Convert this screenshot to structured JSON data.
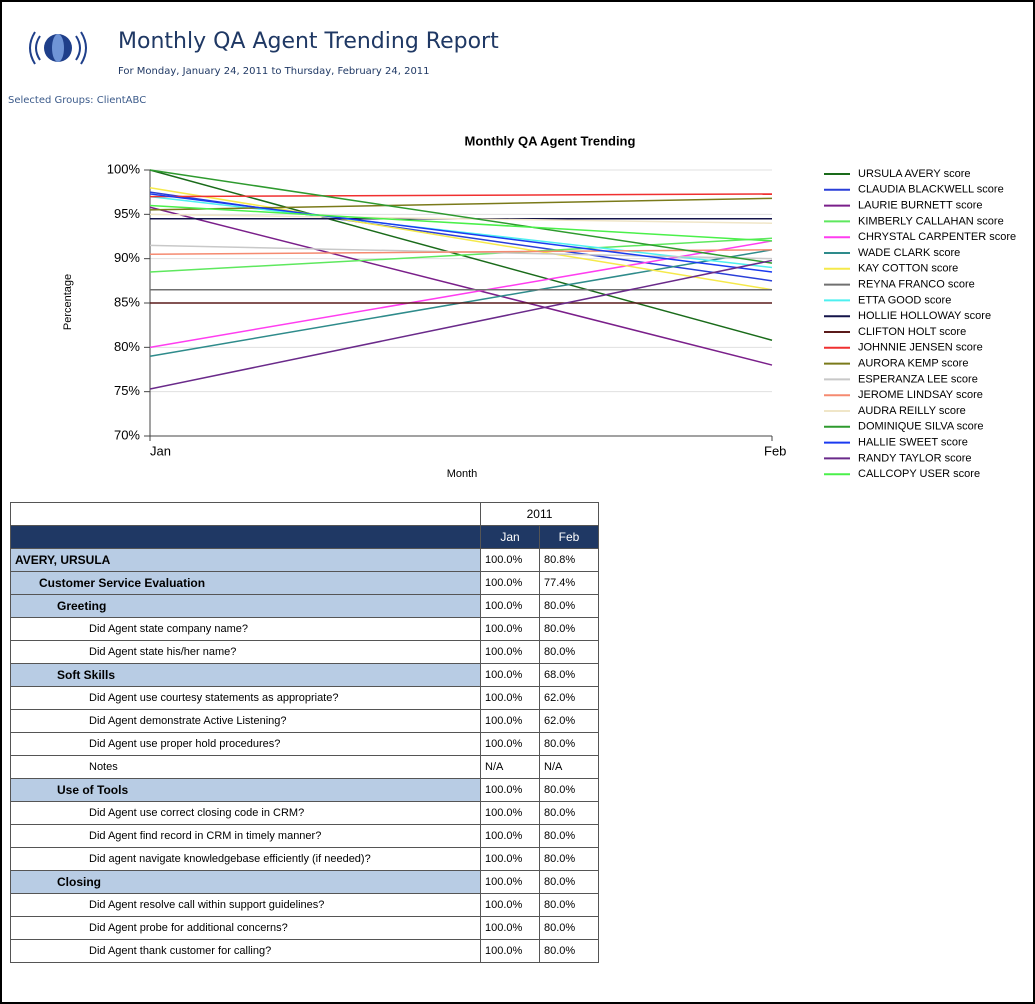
{
  "header": {
    "title": "Monthly QA Agent Trending Report",
    "subtitle": "For Monday, January 24, 2011 to Thursday, February 24, 2011",
    "groups": "Selected Groups: ClientABC"
  },
  "chart_data": {
    "type": "line",
    "title": "Monthly QA Agent Trending",
    "x_label": "Month",
    "y_label": "Percentage",
    "categories": [
      "Jan",
      "Feb"
    ],
    "ylim": [
      70,
      100
    ],
    "yticks": [
      {
        "value": 70,
        "label": "70%"
      },
      {
        "value": 75,
        "label": "75%"
      },
      {
        "value": 80,
        "label": "80%"
      },
      {
        "value": 85,
        "label": "85%"
      },
      {
        "value": 90,
        "label": "90%"
      },
      {
        "value": 95,
        "label": "95%"
      },
      {
        "value": 100,
        "label": "100%"
      }
    ],
    "grid": true,
    "legend": "right",
    "series": [
      {
        "name": "URSULA AVERY score",
        "color": "#1a6b1a",
        "values": [
          100,
          80.8
        ]
      },
      {
        "name": "CLAUDIA BLACKWELL score",
        "color": "#2a3fd8",
        "values": [
          97.5,
          87.5
        ]
      },
      {
        "name": "LAURIE BURNETT score",
        "color": "#7a1f8a",
        "values": [
          95.8,
          78
        ]
      },
      {
        "name": "KIMBERLY CALLAHAN score",
        "color": "#5ee85e",
        "values": [
          88.5,
          92.3
        ]
      },
      {
        "name": "CHRYSTAL CARPENTER score",
        "color": "#ff3df0",
        "values": [
          80,
          92
        ]
      },
      {
        "name": "WADE CLARK score",
        "color": "#2e8b8b",
        "values": [
          79,
          91
        ]
      },
      {
        "name": "KAY COTTON score",
        "color": "#f5e94a",
        "values": [
          98,
          86.5
        ]
      },
      {
        "name": "REYNA FRANCO score",
        "color": "#707070",
        "values": [
          86.5,
          86.5
        ]
      },
      {
        "name": "ETTA GOOD score",
        "color": "#4ef0f0",
        "values": [
          97,
          89
        ]
      },
      {
        "name": "HOLLIE HOLLOWAY score",
        "color": "#14144a",
        "values": [
          94.5,
          94.5
        ]
      },
      {
        "name": "CLIFTON HOLT score",
        "color": "#5a1a1a",
        "values": [
          85,
          85
        ]
      },
      {
        "name": "JOHNNIE JENSEN score",
        "color": "#f03030",
        "values": [
          97,
          97.3
        ]
      },
      {
        "name": "AURORA KEMP score",
        "color": "#7a7a1a",
        "values": [
          95.5,
          96.8
        ]
      },
      {
        "name": "ESPERANZA LEE score",
        "color": "#c8c8c8",
        "values": [
          91.5,
          90
        ]
      },
      {
        "name": "JEROME LINDSAY score",
        "color": "#f58a70",
        "values": [
          90.5,
          91
        ]
      },
      {
        "name": "AUDRA REILLY score",
        "color": "#f0e6c8",
        "values": [
          95,
          94
        ]
      },
      {
        "name": "DOMINIQUE SILVA score",
        "color": "#2e9a2e",
        "values": [
          100,
          89.5
        ]
      },
      {
        "name": "HALLIE SWEET score",
        "color": "#1a3af0",
        "values": [
          97.3,
          88.5
        ]
      },
      {
        "name": "RANDY TAYLOR score",
        "color": "#6a2a8a",
        "values": [
          75.3,
          89.8
        ]
      },
      {
        "name": "CALLCOPY USER score",
        "color": "#4af04a",
        "values": [
          96,
          92
        ]
      }
    ]
  },
  "table": {
    "year": "2011",
    "months": [
      "Jan",
      "Feb"
    ],
    "agent": {
      "name": "AVERY, URSULA",
      "values": [
        "100.0%",
        "80.8%"
      ],
      "sections": [
        {
          "name": "Customer Service Evaluation",
          "values": [
            "100.0%",
            "77.4%"
          ],
          "groups": [
            {
              "name": "Greeting",
              "values": [
                "100.0%",
                "80.0%"
              ],
              "items": [
                {
                  "label": "Did Agent state company name?",
                  "values": [
                    "100.0%",
                    "80.0%"
                  ]
                },
                {
                  "label": "Did Agent state his/her name?",
                  "values": [
                    "100.0%",
                    "80.0%"
                  ]
                }
              ]
            },
            {
              "name": "Soft Skills",
              "values": [
                "100.0%",
                "68.0%"
              ],
              "items": [
                {
                  "label": "Did Agent use courtesy statements as appropriate?",
                  "values": [
                    "100.0%",
                    "62.0%"
                  ]
                },
                {
                  "label": "Did Agent demonstrate Active Listening?",
                  "values": [
                    "100.0%",
                    "62.0%"
                  ]
                },
                {
                  "label": "Did Agent use proper hold procedures?",
                  "values": [
                    "100.0%",
                    "80.0%"
                  ]
                },
                {
                  "label": "Notes",
                  "values": [
                    "N/A",
                    "N/A"
                  ]
                }
              ]
            },
            {
              "name": "Use of Tools",
              "values": [
                "100.0%",
                "80.0%"
              ],
              "items": [
                {
                  "label": "Did Agent use correct closing code in CRM?",
                  "values": [
                    "100.0%",
                    "80.0%"
                  ]
                },
                {
                  "label": "Did Agent find record in CRM in timely manner?",
                  "values": [
                    "100.0%",
                    "80.0%"
                  ]
                },
                {
                  "label": "Did agent navigate knowledgebase efficiently (if needed)?",
                  "values": [
                    "100.0%",
                    "80.0%"
                  ]
                }
              ]
            },
            {
              "name": "Closing",
              "values": [
                "100.0%",
                "80.0%"
              ],
              "items": [
                {
                  "label": "Did Agent resolve call within support guidelines?",
                  "values": [
                    "100.0%",
                    "80.0%"
                  ]
                },
                {
                  "label": "Did Agent probe for additional concerns?",
                  "values": [
                    "100.0%",
                    "80.0%"
                  ]
                },
                {
                  "label": "Did Agent thank customer for calling?",
                  "values": [
                    "100.0%",
                    "80.0%"
                  ]
                }
              ]
            }
          ]
        }
      ]
    }
  }
}
